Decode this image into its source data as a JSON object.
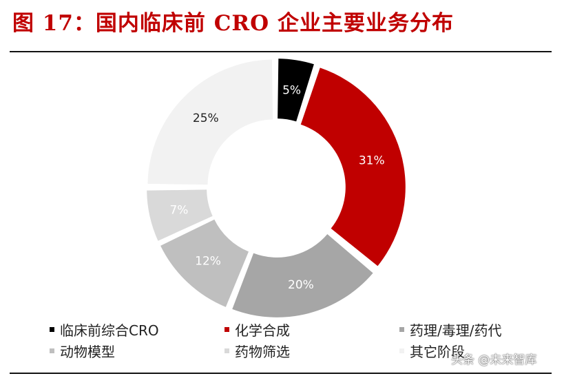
{
  "title": "图 17：国内临床前 CRO 企业主要业务分布",
  "chart_data": {
    "type": "pie",
    "subtype": "donut",
    "title": "国内临床前 CRO 企业主要业务分布",
    "unit": "%",
    "slices": [
      {
        "label": "临床前综合CRO",
        "value": 5,
        "display": "5%",
        "color": "#000000",
        "label_color": "#ffffff"
      },
      {
        "label": "化学合成",
        "value": 31,
        "display": "31%",
        "color": "#c00000",
        "label_color": "#ffffff"
      },
      {
        "label": "药理/毒理/药代",
        "value": 20,
        "display": "20%",
        "color": "#a6a6a6",
        "label_color": "#ffffff"
      },
      {
        "label": "动物模型",
        "value": 12,
        "display": "12%",
        "color": "#bfbfbf",
        "label_color": "#ffffff"
      },
      {
        "label": "药物筛选",
        "value": 7,
        "display": "7%",
        "color": "#d9d9d9",
        "label_color": "#ffffff"
      },
      {
        "label": "其它阶段",
        "value": 25,
        "display": "25%",
        "color": "#f2f2f2",
        "label_color": "#222222"
      }
    ],
    "legend_placement": "bottom"
  },
  "watermark": "头条 @未来智库"
}
